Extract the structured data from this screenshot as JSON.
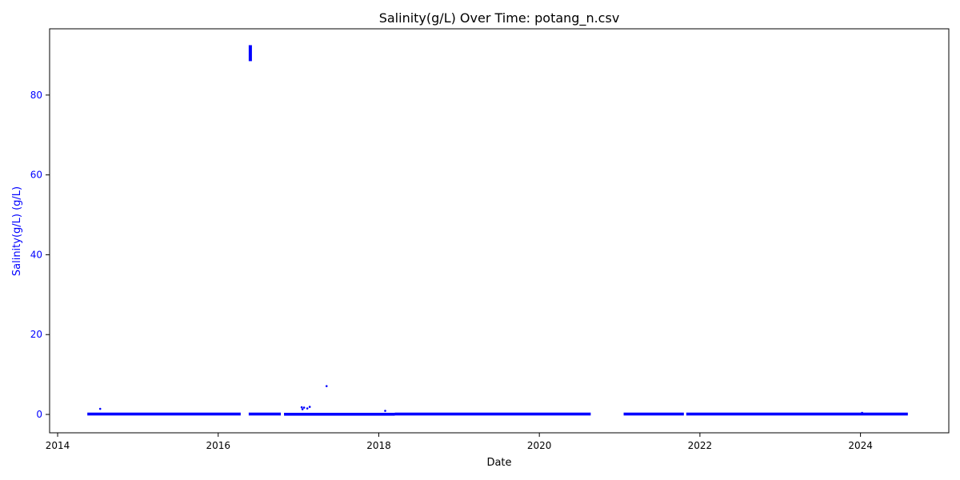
{
  "chart_data": {
    "type": "scatter",
    "title": "Salinity(g/L) Over Time: potang_n.csv",
    "xlabel": "Date",
    "ylabel": "Salinity(g/L) (g/L)",
    "xlim": [
      2013.9,
      2025.1
    ],
    "ylim": [
      -4.6,
      96.6
    ],
    "xticks": [
      2014,
      2016,
      2018,
      2020,
      2022,
      2024
    ],
    "yticks": [
      0,
      20,
      40,
      60,
      80
    ],
    "point_color": "#0000ff",
    "axis_label_color": "#0000ff",
    "grid": false,
    "legend": "none",
    "baseline_segments": [
      {
        "x_start": 2014.37,
        "x_end": 2016.28,
        "y": 0.1
      },
      {
        "x_start": 2016.38,
        "x_end": 2016.78,
        "y": 0.1
      },
      {
        "x_start": 2016.82,
        "x_end": 2018.2,
        "y": 0.05
      },
      {
        "x_start": 2018.2,
        "x_end": 2020.64,
        "y": 0.1
      },
      {
        "x_start": 2021.05,
        "x_end": 2021.8,
        "y": 0.1
      },
      {
        "x_start": 2021.83,
        "x_end": 2024.59,
        "y": 0.1
      }
    ],
    "spike_cluster": {
      "x_start": 2016.38,
      "x_end": 2016.42,
      "y_min": 88.5,
      "y_max": 92.5
    },
    "outliers": [
      {
        "x": 2014.53,
        "y": 1.4
      },
      {
        "x": 2017.04,
        "y": 1.8
      },
      {
        "x": 2017.05,
        "y": 1.3
      },
      {
        "x": 2017.07,
        "y": 1.7
      },
      {
        "x": 2017.11,
        "y": 1.5
      },
      {
        "x": 2017.14,
        "y": 1.9
      },
      {
        "x": 2017.35,
        "y": 7.1
      },
      {
        "x": 2018.08,
        "y": 0.9
      },
      {
        "x": 2024.02,
        "y": 0.4
      }
    ]
  }
}
